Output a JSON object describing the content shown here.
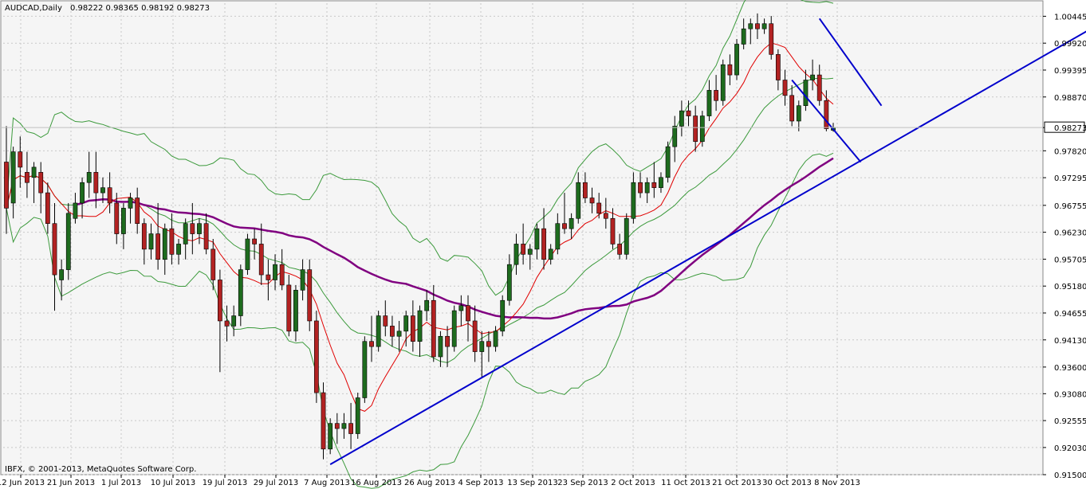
{
  "header": {
    "symbol": "AUDCAD,Daily",
    "ohlc": "0.98222 0.98365 0.98192 0.98273"
  },
  "copyright": "IBFX, © 2001-2013, MetaQuotes Software Corp.",
  "current_price_label": "0.98273",
  "colors": {
    "background": "#f5f5f5",
    "grid": "#c8c8c8",
    "bull_candle": "#1e6b1e",
    "bear_candle": "#b22222",
    "bollinger": "#3c9a3c",
    "ma_fast": "#e00000",
    "ma_slow": "#800080",
    "trendlines": "#0000cc"
  },
  "chart_data": {
    "type": "candlestick",
    "symbol": "AUDCAD",
    "timeframe": "Daily",
    "grid": true,
    "y_axis_ticks": [
      "1.00445",
      "0.99920",
      "0.99395",
      "0.98870",
      "0.98273",
      "0.97820",
      "0.97295",
      "0.96755",
      "0.96230",
      "0.95705",
      "0.95180",
      "0.94655",
      "0.94130",
      "0.93600",
      "0.93080",
      "0.92555",
      "0.92030",
      "0.91500"
    ],
    "x_axis_ticks": [
      "12 Jun 2013",
      "21 Jun 2013",
      "1 Jul 2013",
      "10 Jul 2013",
      "19 Jul 2013",
      "29 Jul 2013",
      "7 Aug 2013",
      "16 Aug 2013",
      "26 Aug 2013",
      "4 Sep 2013",
      "13 Sep 2013",
      "23 Sep 2013",
      "2 Oct 2013",
      "11 Oct 2013",
      "21 Oct 2013",
      "30 Oct 2013",
      "8 Nov 2013"
    ],
    "ylim": [
      0.915,
      1.007
    ],
    "last_close": 0.98273,
    "candles": [
      {
        "o": 0.976,
        "h": 0.983,
        "l": 0.962,
        "c": 0.967
      },
      {
        "o": 0.968,
        "h": 0.979,
        "l": 0.965,
        "c": 0.978
      },
      {
        "o": 0.978,
        "h": 0.981,
        "l": 0.971,
        "c": 0.975
      },
      {
        "o": 0.974,
        "h": 0.978,
        "l": 0.969,
        "c": 0.972
      },
      {
        "o": 0.973,
        "h": 0.976,
        "l": 0.968,
        "c": 0.975
      },
      {
        "o": 0.974,
        "h": 0.976,
        "l": 0.966,
        "c": 0.97
      },
      {
        "o": 0.97,
        "h": 0.972,
        "l": 0.962,
        "c": 0.964
      },
      {
        "o": 0.964,
        "h": 0.968,
        "l": 0.947,
        "c": 0.954
      },
      {
        "o": 0.953,
        "h": 0.957,
        "l": 0.949,
        "c": 0.955
      },
      {
        "o": 0.955,
        "h": 0.968,
        "l": 0.953,
        "c": 0.966
      },
      {
        "o": 0.965,
        "h": 0.97,
        "l": 0.964,
        "c": 0.968
      },
      {
        "o": 0.968,
        "h": 0.973,
        "l": 0.965,
        "c": 0.972
      },
      {
        "o": 0.972,
        "h": 0.978,
        "l": 0.969,
        "c": 0.974
      },
      {
        "o": 0.974,
        "h": 0.978,
        "l": 0.967,
        "c": 0.97
      },
      {
        "o": 0.97,
        "h": 0.973,
        "l": 0.968,
        "c": 0.971
      },
      {
        "o": 0.971,
        "h": 0.974,
        "l": 0.966,
        "c": 0.968
      },
      {
        "o": 0.968,
        "h": 0.97,
        "l": 0.96,
        "c": 0.962
      },
      {
        "o": 0.962,
        "h": 0.968,
        "l": 0.959,
        "c": 0.967
      },
      {
        "o": 0.967,
        "h": 0.97,
        "l": 0.964,
        "c": 0.969
      },
      {
        "o": 0.969,
        "h": 0.971,
        "l": 0.962,
        "c": 0.964
      },
      {
        "o": 0.964,
        "h": 0.965,
        "l": 0.956,
        "c": 0.959
      },
      {
        "o": 0.959,
        "h": 0.964,
        "l": 0.957,
        "c": 0.962
      },
      {
        "o": 0.962,
        "h": 0.968,
        "l": 0.955,
        "c": 0.957
      },
      {
        "o": 0.957,
        "h": 0.964,
        "l": 0.954,
        "c": 0.963
      },
      {
        "o": 0.963,
        "h": 0.966,
        "l": 0.956,
        "c": 0.958
      },
      {
        "o": 0.958,
        "h": 0.961,
        "l": 0.956,
        "c": 0.96
      },
      {
        "o": 0.96,
        "h": 0.965,
        "l": 0.957,
        "c": 0.964
      },
      {
        "o": 0.964,
        "h": 0.968,
        "l": 0.958,
        "c": 0.962
      },
      {
        "o": 0.962,
        "h": 0.965,
        "l": 0.96,
        "c": 0.964
      },
      {
        "o": 0.964,
        "h": 0.966,
        "l": 0.958,
        "c": 0.959
      },
      {
        "o": 0.959,
        "h": 0.961,
        "l": 0.951,
        "c": 0.953
      },
      {
        "o": 0.953,
        "h": 0.955,
        "l": 0.935,
        "c": 0.945
      },
      {
        "o": 0.945,
        "h": 0.948,
        "l": 0.941,
        "c": 0.944
      },
      {
        "o": 0.944,
        "h": 0.948,
        "l": 0.942,
        "c": 0.946
      },
      {
        "o": 0.946,
        "h": 0.956,
        "l": 0.944,
        "c": 0.955
      },
      {
        "o": 0.955,
        "h": 0.962,
        "l": 0.954,
        "c": 0.961
      },
      {
        "o": 0.961,
        "h": 0.963,
        "l": 0.957,
        "c": 0.96
      },
      {
        "o": 0.96,
        "h": 0.964,
        "l": 0.952,
        "c": 0.954
      },
      {
        "o": 0.954,
        "h": 0.957,
        "l": 0.949,
        "c": 0.953
      },
      {
        "o": 0.953,
        "h": 0.958,
        "l": 0.951,
        "c": 0.956
      },
      {
        "o": 0.956,
        "h": 0.959,
        "l": 0.951,
        "c": 0.952
      },
      {
        "o": 0.952,
        "h": 0.954,
        "l": 0.942,
        "c": 0.943
      },
      {
        "o": 0.943,
        "h": 0.952,
        "l": 0.941,
        "c": 0.951
      },
      {
        "o": 0.951,
        "h": 0.957,
        "l": 0.949,
        "c": 0.955
      },
      {
        "o": 0.955,
        "h": 0.957,
        "l": 0.943,
        "c": 0.945
      },
      {
        "o": 0.945,
        "h": 0.947,
        "l": 0.929,
        "c": 0.931
      },
      {
        "o": 0.931,
        "h": 0.933,
        "l": 0.918,
        "c": 0.92
      },
      {
        "o": 0.92,
        "h": 0.926,
        "l": 0.919,
        "c": 0.925
      },
      {
        "o": 0.925,
        "h": 0.927,
        "l": 0.921,
        "c": 0.924
      },
      {
        "o": 0.924,
        "h": 0.927,
        "l": 0.922,
        "c": 0.925
      },
      {
        "o": 0.925,
        "h": 0.929,
        "l": 0.92,
        "c": 0.923
      },
      {
        "o": 0.923,
        "h": 0.931,
        "l": 0.922,
        "c": 0.93
      },
      {
        "o": 0.93,
        "h": 0.942,
        "l": 0.929,
        "c": 0.941
      },
      {
        "o": 0.941,
        "h": 0.946,
        "l": 0.937,
        "c": 0.94
      },
      {
        "o": 0.94,
        "h": 0.947,
        "l": 0.939,
        "c": 0.946
      },
      {
        "o": 0.946,
        "h": 0.949,
        "l": 0.942,
        "c": 0.944
      },
      {
        "o": 0.944,
        "h": 0.946,
        "l": 0.94,
        "c": 0.942
      },
      {
        "o": 0.942,
        "h": 0.945,
        "l": 0.939,
        "c": 0.943
      },
      {
        "o": 0.943,
        "h": 0.947,
        "l": 0.94,
        "c": 0.946
      },
      {
        "o": 0.946,
        "h": 0.949,
        "l": 0.939,
        "c": 0.941
      },
      {
        "o": 0.941,
        "h": 0.948,
        "l": 0.938,
        "c": 0.947
      },
      {
        "o": 0.947,
        "h": 0.951,
        "l": 0.945,
        "c": 0.949
      },
      {
        "o": 0.949,
        "h": 0.952,
        "l": 0.937,
        "c": 0.938
      },
      {
        "o": 0.938,
        "h": 0.943,
        "l": 0.936,
        "c": 0.942
      },
      {
        "o": 0.942,
        "h": 0.944,
        "l": 0.936,
        "c": 0.94
      },
      {
        "o": 0.94,
        "h": 0.948,
        "l": 0.939,
        "c": 0.947
      },
      {
        "o": 0.947,
        "h": 0.95,
        "l": 0.944,
        "c": 0.948
      },
      {
        "o": 0.948,
        "h": 0.95,
        "l": 0.941,
        "c": 0.945
      },
      {
        "o": 0.945,
        "h": 0.948,
        "l": 0.937,
        "c": 0.939
      },
      {
        "o": 0.939,
        "h": 0.943,
        "l": 0.934,
        "c": 0.941
      },
      {
        "o": 0.941,
        "h": 0.943,
        "l": 0.937,
        "c": 0.94
      },
      {
        "o": 0.94,
        "h": 0.944,
        "l": 0.939,
        "c": 0.943
      },
      {
        "o": 0.943,
        "h": 0.95,
        "l": 0.942,
        "c": 0.949
      },
      {
        "o": 0.949,
        "h": 0.958,
        "l": 0.948,
        "c": 0.956
      },
      {
        "o": 0.956,
        "h": 0.962,
        "l": 0.954,
        "c": 0.96
      },
      {
        "o": 0.96,
        "h": 0.964,
        "l": 0.956,
        "c": 0.958
      },
      {
        "o": 0.958,
        "h": 0.96,
        "l": 0.955,
        "c": 0.959
      },
      {
        "o": 0.959,
        "h": 0.964,
        "l": 0.957,
        "c": 0.963
      },
      {
        "o": 0.963,
        "h": 0.967,
        "l": 0.955,
        "c": 0.957
      },
      {
        "o": 0.957,
        "h": 0.96,
        "l": 0.956,
        "c": 0.959
      },
      {
        "o": 0.959,
        "h": 0.966,
        "l": 0.958,
        "c": 0.964
      },
      {
        "o": 0.964,
        "h": 0.97,
        "l": 0.962,
        "c": 0.963
      },
      {
        "o": 0.963,
        "h": 0.966,
        "l": 0.961,
        "c": 0.965
      },
      {
        "o": 0.965,
        "h": 0.974,
        "l": 0.964,
        "c": 0.972
      },
      {
        "o": 0.972,
        "h": 0.974,
        "l": 0.968,
        "c": 0.969
      },
      {
        "o": 0.969,
        "h": 0.971,
        "l": 0.966,
        "c": 0.968
      },
      {
        "o": 0.968,
        "h": 0.97,
        "l": 0.965,
        "c": 0.966
      },
      {
        "o": 0.966,
        "h": 0.969,
        "l": 0.963,
        "c": 0.965
      },
      {
        "o": 0.965,
        "h": 0.967,
        "l": 0.959,
        "c": 0.96
      },
      {
        "o": 0.96,
        "h": 0.962,
        "l": 0.957,
        "c": 0.958
      },
      {
        "o": 0.958,
        "h": 0.966,
        "l": 0.957,
        "c": 0.965
      },
      {
        "o": 0.965,
        "h": 0.974,
        "l": 0.964,
        "c": 0.972
      },
      {
        "o": 0.972,
        "h": 0.974,
        "l": 0.969,
        "c": 0.97
      },
      {
        "o": 0.97,
        "h": 0.973,
        "l": 0.968,
        "c": 0.972
      },
      {
        "o": 0.972,
        "h": 0.976,
        "l": 0.969,
        "c": 0.971
      },
      {
        "o": 0.971,
        "h": 0.974,
        "l": 0.97,
        "c": 0.973
      },
      {
        "o": 0.973,
        "h": 0.98,
        "l": 0.972,
        "c": 0.979
      },
      {
        "o": 0.979,
        "h": 0.985,
        "l": 0.976,
        "c": 0.983
      },
      {
        "o": 0.983,
        "h": 0.988,
        "l": 0.981,
        "c": 0.986
      },
      {
        "o": 0.986,
        "h": 0.988,
        "l": 0.983,
        "c": 0.985
      },
      {
        "o": 0.985,
        "h": 0.987,
        "l": 0.978,
        "c": 0.98
      },
      {
        "o": 0.98,
        "h": 0.986,
        "l": 0.979,
        "c": 0.985
      },
      {
        "o": 0.985,
        "h": 0.992,
        "l": 0.984,
        "c": 0.99
      },
      {
        "o": 0.99,
        "h": 0.993,
        "l": 0.986,
        "c": 0.988
      },
      {
        "o": 0.988,
        "h": 0.996,
        "l": 0.987,
        "c": 0.995
      },
      {
        "o": 0.995,
        "h": 0.997,
        "l": 0.991,
        "c": 0.993
      },
      {
        "o": 0.993,
        "h": 1.0,
        "l": 0.992,
        "c": 0.999
      },
      {
        "o": 0.999,
        "h": 1.004,
        "l": 0.998,
        "c": 1.002
      },
      {
        "o": 1.002,
        "h": 1.004,
        "l": 0.999,
        "c": 1.003
      },
      {
        "o": 1.003,
        "h": 1.005,
        "l": 1.0,
        "c": 1.002
      },
      {
        "o": 1.002,
        "h": 1.004,
        "l": 1.001,
        "c": 1.003
      },
      {
        "o": 1.003,
        "h": 1.0045,
        "l": 0.996,
        "c": 0.997
      },
      {
        "o": 0.997,
        "h": 0.998,
        "l": 0.99,
        "c": 0.992
      },
      {
        "o": 0.992,
        "h": 0.994,
        "l": 0.987,
        "c": 0.989
      },
      {
        "o": 0.989,
        "h": 0.991,
        "l": 0.983,
        "c": 0.984
      },
      {
        "o": 0.984,
        "h": 0.988,
        "l": 0.982,
        "c": 0.987
      },
      {
        "o": 0.987,
        "h": 0.994,
        "l": 0.986,
        "c": 0.992
      },
      {
        "o": 0.992,
        "h": 0.996,
        "l": 0.99,
        "c": 0.993
      },
      {
        "o": 0.993,
        "h": 0.995,
        "l": 0.987,
        "c": 0.988
      },
      {
        "o": 0.988,
        "h": 0.99,
        "l": 0.982,
        "c": 0.9825
      },
      {
        "o": 0.9822,
        "h": 0.98365,
        "l": 0.98192,
        "c": 0.98273
      }
    ],
    "series": [
      {
        "name": "",
        "kind": "bollinger-upper"
      },
      {
        "name": "",
        "kind": "bollinger-middle"
      },
      {
        "name": "",
        "kind": "bollinger-lower"
      },
      {
        "name": "",
        "kind": "ma-slow"
      },
      {
        "name": "",
        "kind": "ma-fast"
      }
    ],
    "trendlines": [
      {
        "from": {
          "bar": 47,
          "price": 0.917
        },
        "to": {
          "bar": 160,
          "price": 1.004
        }
      },
      {
        "from": {
          "bar": 118,
          "price": 1.004
        },
        "to": {
          "bar": 127,
          "price": 0.987
        }
      },
      {
        "from": {
          "bar": 114,
          "price": 0.992
        },
        "to": {
          "bar": 124,
          "price": 0.976
        }
      }
    ]
  }
}
